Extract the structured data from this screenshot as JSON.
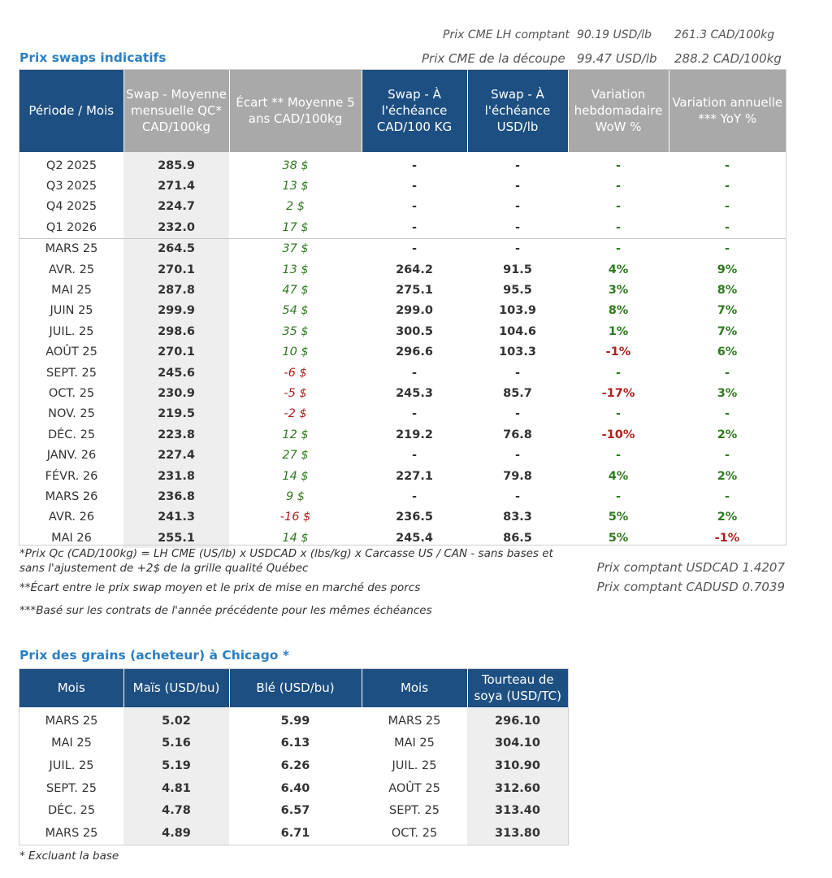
{
  "quotes": {
    "lh_label": "Prix CME LH comptant",
    "lh_usd": "90.19 USD/lb",
    "lh_cad": "261.3 CAD/100kg",
    "cutout_label": "Prix CME de la découpe",
    "cutout_usd": "99.47 USD/lb",
    "cutout_cad": "288.2 CAD/100kg"
  },
  "swaps": {
    "title": "Prix swaps indicatifs",
    "headers": [
      "Période / Mois",
      "Swap - Moyenne mensuelle QC* CAD/100kg",
      "Écart ** Moyenne 5 ans CAD/100kg",
      "Swap - À l'échéance CAD/100 KG",
      "Swap - À l'échéance USD/lb",
      "Variation hebdomadaire WoW %",
      "Variation annuelle *** YoY %"
    ],
    "rows": [
      {
        "period": "Q2 2025",
        "qc": "285.9",
        "ecart": "38 $",
        "ecart_sign": "pos",
        "cad": "-",
        "usd": "-",
        "wow": "-",
        "wow_sign": "pos",
        "yoy": "-",
        "yoy_sign": "pos"
      },
      {
        "period": "Q3 2025",
        "qc": "271.4",
        "ecart": "13 $",
        "ecart_sign": "pos",
        "cad": "-",
        "usd": "-",
        "wow": "-",
        "wow_sign": "pos",
        "yoy": "-",
        "yoy_sign": "pos"
      },
      {
        "period": "Q4 2025",
        "qc": "224.7",
        "ecart": "2 $",
        "ecart_sign": "pos",
        "cad": "-",
        "usd": "-",
        "wow": "-",
        "wow_sign": "pos",
        "yoy": "-",
        "yoy_sign": "pos"
      },
      {
        "period": "Q1 2026",
        "qc": "232.0",
        "ecart": "17 $",
        "ecart_sign": "pos",
        "cad": "-",
        "usd": "-",
        "wow": "-",
        "wow_sign": "pos",
        "yoy": "-",
        "yoy_sign": "pos"
      },
      {
        "period": "MARS 25",
        "qc": "264.5",
        "ecart": "37 $",
        "ecart_sign": "pos",
        "cad": "-",
        "usd": "-",
        "wow": "-",
        "wow_sign": "pos",
        "yoy": "-",
        "yoy_sign": "pos",
        "group_start": true
      },
      {
        "period": "AVR. 25",
        "qc": "270.1",
        "ecart": "13 $",
        "ecart_sign": "pos",
        "cad": "264.2",
        "usd": "91.5",
        "wow": "4%",
        "wow_sign": "pos",
        "yoy": "9%",
        "yoy_sign": "pos"
      },
      {
        "period": "MAI 25",
        "qc": "287.8",
        "ecart": "47 $",
        "ecart_sign": "pos",
        "cad": "275.1",
        "usd": "95.5",
        "wow": "3%",
        "wow_sign": "pos",
        "yoy": "8%",
        "yoy_sign": "pos"
      },
      {
        "period": "JUIN 25",
        "qc": "299.9",
        "ecart": "54 $",
        "ecart_sign": "pos",
        "cad": "299.0",
        "usd": "103.9",
        "wow": "8%",
        "wow_sign": "pos",
        "yoy": "7%",
        "yoy_sign": "pos"
      },
      {
        "period": "JUIL. 25",
        "qc": "298.6",
        "ecart": "35 $",
        "ecart_sign": "pos",
        "cad": "300.5",
        "usd": "104.6",
        "wow": "1%",
        "wow_sign": "pos",
        "yoy": "7%",
        "yoy_sign": "pos"
      },
      {
        "period": "AOÛT 25",
        "qc": "270.1",
        "ecart": "10 $",
        "ecart_sign": "pos",
        "cad": "296.6",
        "usd": "103.3",
        "wow": "-1%",
        "wow_sign": "neg",
        "yoy": "6%",
        "yoy_sign": "pos"
      },
      {
        "period": "SEPT. 25",
        "qc": "245.6",
        "ecart": "-6 $",
        "ecart_sign": "neg",
        "cad": "-",
        "usd": "-",
        "wow": "-",
        "wow_sign": "pos",
        "yoy": "-",
        "yoy_sign": "pos"
      },
      {
        "period": "OCT. 25",
        "qc": "230.9",
        "ecart": "-5 $",
        "ecart_sign": "neg",
        "cad": "245.3",
        "usd": "85.7",
        "wow": "-17%",
        "wow_sign": "neg",
        "yoy": "3%",
        "yoy_sign": "pos"
      },
      {
        "period": "NOV. 25",
        "qc": "219.5",
        "ecart": "-2 $",
        "ecart_sign": "neg",
        "cad": "-",
        "usd": "-",
        "wow": "-",
        "wow_sign": "pos",
        "yoy": "-",
        "yoy_sign": "pos"
      },
      {
        "period": "DÉC. 25",
        "qc": "223.8",
        "ecart": "12 $",
        "ecart_sign": "pos",
        "cad": "219.2",
        "usd": "76.8",
        "wow": "-10%",
        "wow_sign": "neg",
        "yoy": "2%",
        "yoy_sign": "pos"
      },
      {
        "period": "JANV. 26",
        "qc": "227.4",
        "ecart": "27 $",
        "ecart_sign": "pos",
        "cad": "-",
        "usd": "-",
        "wow": "-",
        "wow_sign": "pos",
        "yoy": "-",
        "yoy_sign": "pos"
      },
      {
        "period": "FÉVR. 26",
        "qc": "231.8",
        "ecart": "14 $",
        "ecart_sign": "pos",
        "cad": "227.1",
        "usd": "79.8",
        "wow": "4%",
        "wow_sign": "pos",
        "yoy": "2%",
        "yoy_sign": "pos"
      },
      {
        "period": "MARS 26",
        "qc": "236.8",
        "ecart": "9 $",
        "ecart_sign": "pos",
        "cad": "-",
        "usd": "-",
        "wow": "-",
        "wow_sign": "pos",
        "yoy": "-",
        "yoy_sign": "pos"
      },
      {
        "period": "AVR. 26",
        "qc": "241.3",
        "ecart": "-16 $",
        "ecart_sign": "neg",
        "cad": "236.5",
        "usd": "83.3",
        "wow": "5%",
        "wow_sign": "pos",
        "yoy": "2%",
        "yoy_sign": "pos"
      },
      {
        "period": "MAI 26",
        "qc": "255.1",
        "ecart": "14 $",
        "ecart_sign": "pos",
        "cad": "245.4",
        "usd": "86.5",
        "wow": "5%",
        "wow_sign": "pos",
        "yoy": "-1%",
        "yoy_sign": "neg"
      }
    ]
  },
  "footnotes": {
    "note1": "*Prix Qc (CAD/100kg) = LH CME (US/lb) x USDCAD x (lbs/kg) x Carcasse US / CAN - sans bases et sans l'ajustement de +2$ de la grille qualité Québec",
    "note2": "**Écart entre le prix swap moyen et le prix de mise en marché des porcs",
    "note3": "***Basé sur les contrats de l'année précédente pour les mêmes échéances",
    "fx_usdcad": "Prix comptant USDCAD 1.4207",
    "fx_cadusd": "Prix comptant CADUSD 0.7039"
  },
  "grains": {
    "title": "Prix des grains (acheteur) à Chicago *",
    "headers": [
      "Mois",
      "Maïs (USD/bu)",
      "Blé (USD/bu)",
      "Mois",
      "Tourteau de soya (USD/TC)"
    ],
    "rows": [
      {
        "month": "MARS 25",
        "corn": "5.02",
        "wheat": "5.99",
        "soy_month": "MARS 25",
        "soy": "296.10"
      },
      {
        "month": "MAI 25",
        "corn": "5.16",
        "wheat": "6.13",
        "soy_month": "MAI 25",
        "soy": "304.10"
      },
      {
        "month": "JUIL. 25",
        "corn": "5.19",
        "wheat": "6.26",
        "soy_month": "JUIL. 25",
        "soy": "310.90"
      },
      {
        "month": "SEPT. 25",
        "corn": "4.81",
        "wheat": "6.40",
        "soy_month": "AOÛT 25",
        "soy": "312.60"
      },
      {
        "month": "DÉC. 25",
        "corn": "4.78",
        "wheat": "6.57",
        "soy_month": "SEPT. 25",
        "soy": "313.40"
      },
      {
        "month": "MARS 25",
        "corn": "4.89",
        "wheat": "6.71",
        "soy_month": "OCT. 25",
        "soy": "313.80"
      }
    ],
    "footnote": "* Excluant la base"
  },
  "colors": {
    "header_blue": "#1d4f82",
    "header_grey": "#a9a9a9",
    "title_blue": "#2a7fc4",
    "positive": "#2f7a1f",
    "negative": "#b0201a"
  }
}
